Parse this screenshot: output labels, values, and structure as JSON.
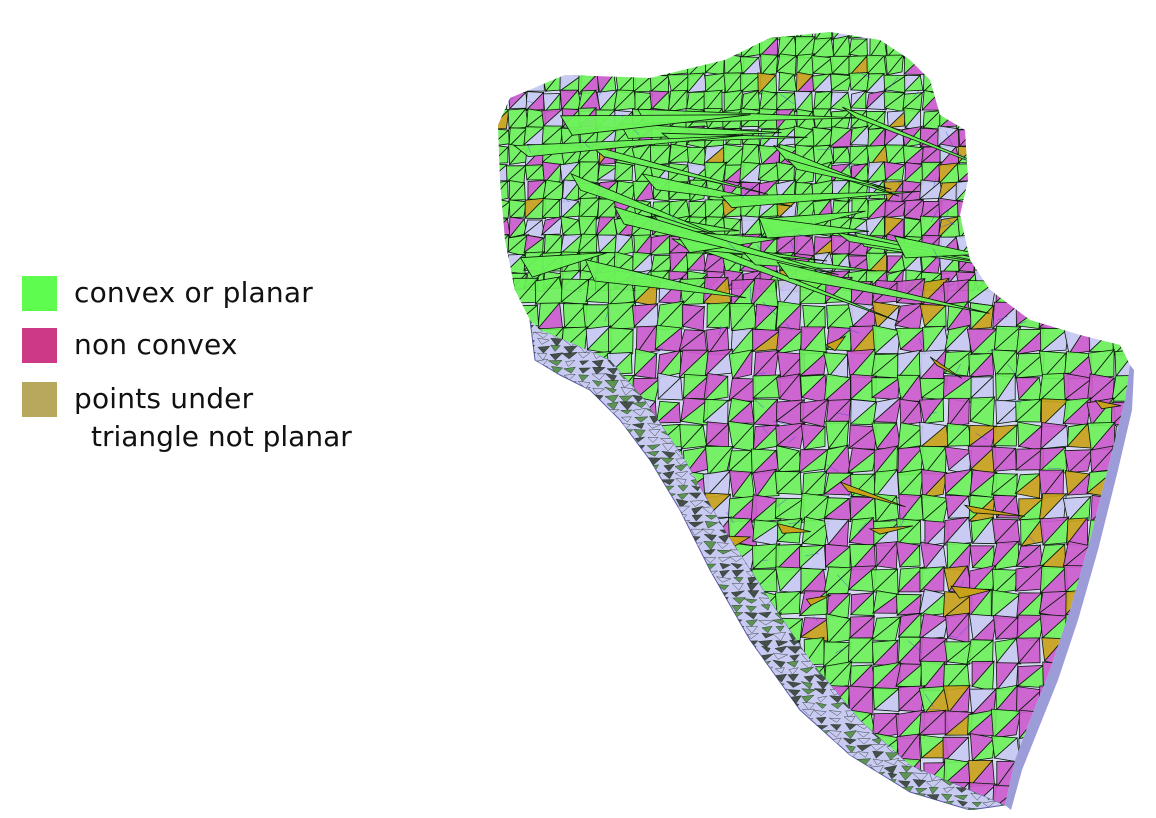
{
  "legend": {
    "items": [
      {
        "label": "convex or planar",
        "color": "#5dfc4f"
      },
      {
        "label": "non convex",
        "color": "#cc3a85"
      },
      {
        "label": "points under",
        "label_cont": "triangle not planar",
        "color": "#b8a85c"
      }
    ]
  },
  "figure": {
    "face_colors": {
      "convex": "#6cf25a",
      "nonconvex": "#cc5ccc",
      "notplanar": "#c9a21a",
      "base": "#c8caf2",
      "side": "#e6e6f8",
      "shadow": "#2c3a2a",
      "edge": "#0a1a0a",
      "wire": "#3a4ad8"
    }
  }
}
